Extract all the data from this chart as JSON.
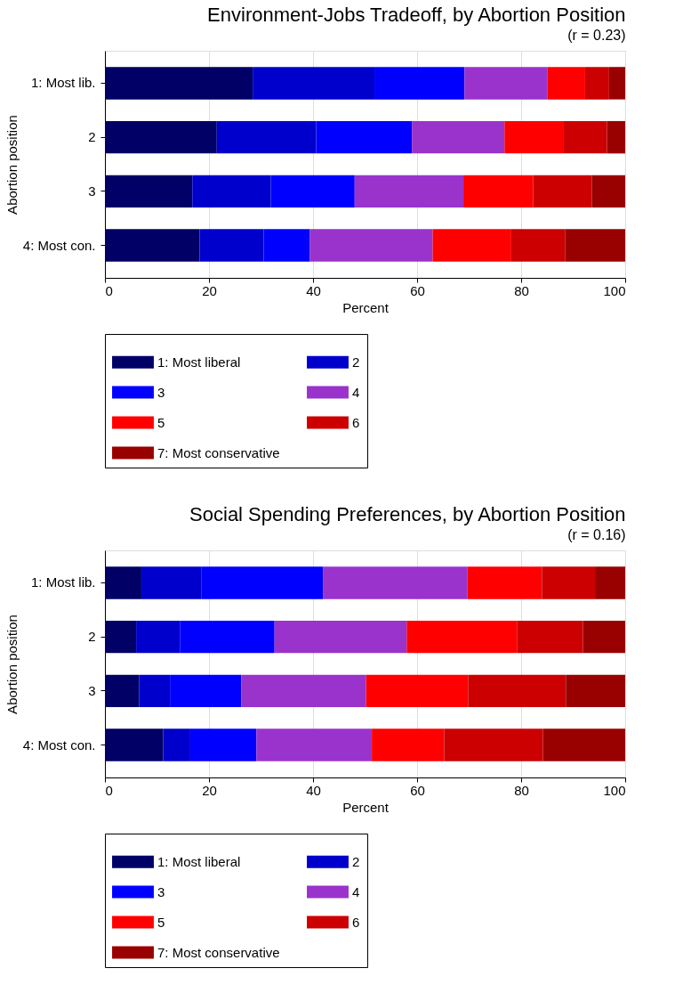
{
  "chart_data": [
    {
      "type": "bar",
      "orientation": "horizontal",
      "stacked": true,
      "title": "Environment-Jobs Tradeoff, by Abortion Position",
      "subtitle": "(r = 0.23)",
      "xlabel": "Percent",
      "ylabel": "Abortion position",
      "categories": [
        "1: Most lib.",
        "2",
        "3",
        "4: Most con."
      ],
      "xlim": [
        0,
        100
      ],
      "xticks": [
        0,
        20,
        40,
        60,
        80,
        100
      ],
      "grid": "x",
      "legend": "bottom",
      "series": [
        {
          "name": "1: Most liberal",
          "color": "#000066",
          "values": [
            28.4,
            21.5,
            16.8,
            18.2
          ]
        },
        {
          "name": "2",
          "color": "#0000cc",
          "values": [
            23.4,
            19.1,
            15.1,
            12.3
          ]
        },
        {
          "name": "3",
          "color": "#0000ff",
          "values": [
            17.3,
            18.4,
            16.1,
            8.9
          ]
        },
        {
          "name": "4",
          "color": "#9933cc",
          "values": [
            16.0,
            17.8,
            20.9,
            23.6
          ]
        },
        {
          "name": "5",
          "color": "#ff0000",
          "values": [
            7.2,
            11.4,
            13.4,
            15.1
          ]
        },
        {
          "name": "6",
          "color": "#cc0000",
          "values": [
            4.6,
            8.3,
            11.3,
            10.4
          ]
        },
        {
          "name": "7: Most conservative",
          "color": "#990000",
          "values": [
            3.1,
            3.5,
            6.4,
            11.5
          ]
        }
      ]
    },
    {
      "type": "bar",
      "orientation": "horizontal",
      "stacked": true,
      "title": "Social Spending Preferences, by Abortion Position",
      "subtitle": "(r = 0.16)",
      "xlabel": "Percent",
      "ylabel": "Abortion position",
      "categories": [
        "1: Most lib.",
        "2",
        "3",
        "4: Most con."
      ],
      "xlim": [
        0,
        100
      ],
      "xticks": [
        0,
        20,
        40,
        60,
        80,
        100
      ],
      "grid": "x",
      "legend": "bottom",
      "series": [
        {
          "name": "1: Most liberal",
          "color": "#000066",
          "values": [
            7.0,
            6.0,
            6.6,
            11.2
          ]
        },
        {
          "name": "2",
          "color": "#0000cc",
          "values": [
            11.5,
            8.4,
            5.9,
            5.2
          ]
        },
        {
          "name": "3",
          "color": "#0000ff",
          "values": [
            23.4,
            18.2,
            13.7,
            12.7
          ]
        },
        {
          "name": "4",
          "color": "#9933cc",
          "values": [
            27.8,
            25.4,
            24.0,
            22.2
          ]
        },
        {
          "name": "5",
          "color": "#ff0000",
          "values": [
            14.3,
            21.2,
            19.6,
            13.9
          ]
        },
        {
          "name": "6",
          "color": "#cc0000",
          "values": [
            10.2,
            12.7,
            18.8,
            19.0
          ]
        },
        {
          "name": "7: Most conservative",
          "color": "#990000",
          "values": [
            5.8,
            8.1,
            11.4,
            15.8
          ]
        }
      ]
    }
  ]
}
